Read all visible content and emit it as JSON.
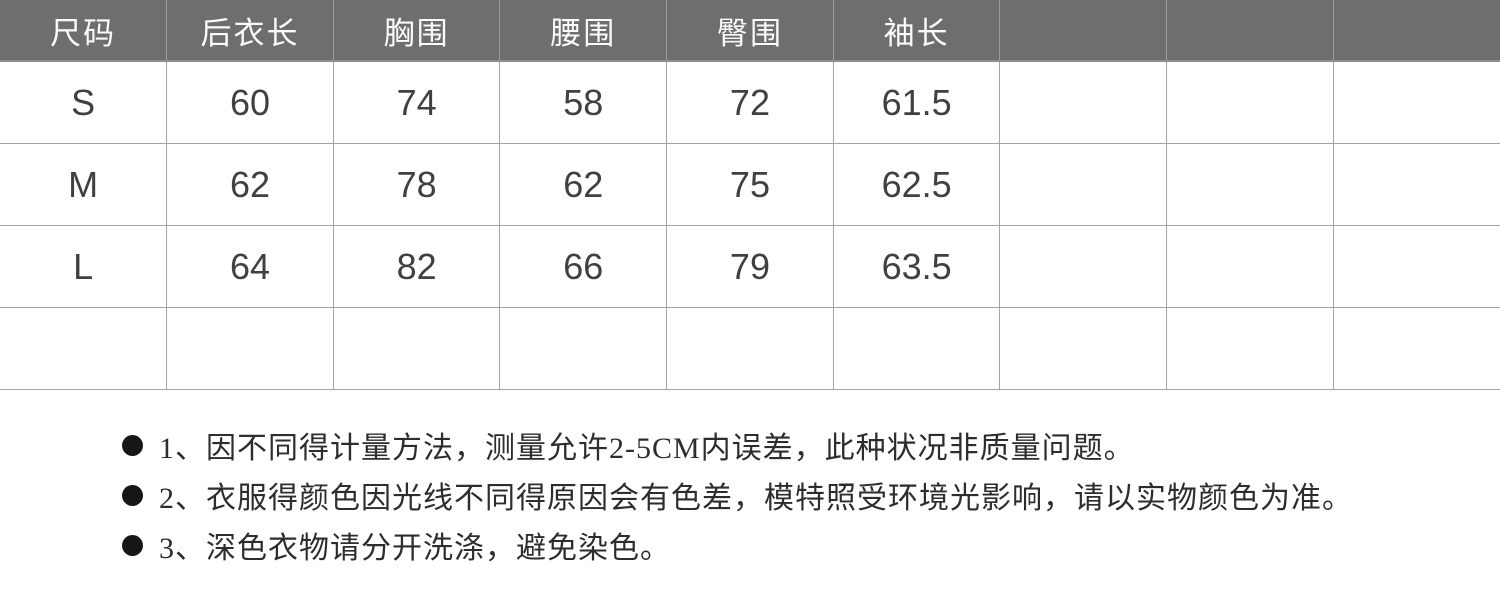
{
  "table": {
    "headers": [
      "尺码",
      "后衣长",
      "胸围",
      "腰围",
      "臀围",
      "袖长",
      "",
      "",
      ""
    ],
    "rows": [
      [
        "S",
        "60",
        "74",
        "58",
        "72",
        "61.5",
        "",
        "",
        ""
      ],
      [
        "M",
        "62",
        "78",
        "62",
        "75",
        "62.5",
        "",
        "",
        ""
      ],
      [
        "L",
        "64",
        "82",
        "66",
        "79",
        "63.5",
        "",
        "",
        ""
      ],
      [
        "",
        "",
        "",
        "",
        "",
        "",
        "",
        "",
        ""
      ]
    ]
  },
  "notes": {
    "items": [
      "1、因不同得计量方法，测量允许2-5CM内误差，此种状况非质量问题。",
      "2、衣服得颜色因光线不同得原因会有色差，模特照受环境光影响，请以实物颜色为准。",
      "3、深色衣物请分开洗涤，避免染色。"
    ]
  },
  "colors": {
    "header_bg": "#6e6e6e",
    "header_text": "#fafafa",
    "body_text": "#404040",
    "border": "#a3a3a3",
    "note_text": "#2d2d2d",
    "bullet_color": "#161616"
  },
  "chart_data": {
    "type": "table",
    "title": "",
    "columns": [
      "尺码",
      "后衣长",
      "胸围",
      "腰围",
      "臀围",
      "袖长"
    ],
    "rows": [
      {
        "尺码": "S",
        "后衣长": 60,
        "胸围": 74,
        "腰围": 58,
        "臀围": 72,
        "袖长": 61.5
      },
      {
        "尺码": "M",
        "后衣长": 62,
        "胸围": 78,
        "腰围": 62,
        "臀围": 75,
        "袖长": 62.5
      },
      {
        "尺码": "L",
        "后衣长": 64,
        "胸围": 82,
        "腰围": 66,
        "臀围": 79,
        "袖长": 63.5
      }
    ]
  }
}
